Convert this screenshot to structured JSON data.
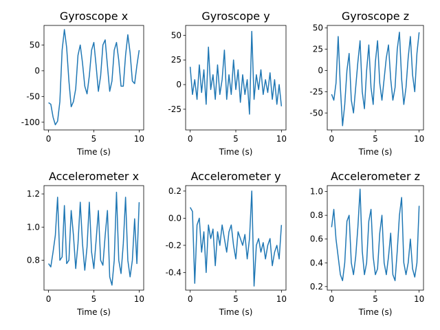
{
  "figure": {
    "line_color": "#1f77b4",
    "background": "#ffffff"
  },
  "chart_data": [
    {
      "type": "line",
      "title": "Gyroscope x",
      "xlabel": "Time (s)",
      "ylabel": "",
      "xlim": [
        -0.5,
        10.5
      ],
      "ylim": [
        -115,
        88
      ],
      "xticks": [
        0,
        5,
        10
      ],
      "yticks": [
        -100,
        -50,
        0,
        50
      ],
      "x": [
        0,
        0.25,
        0.5,
        0.75,
        1.0,
        1.25,
        1.5,
        1.75,
        2.0,
        2.25,
        2.5,
        2.75,
        3.0,
        3.25,
        3.5,
        3.75,
        4.0,
        4.25,
        4.5,
        4.75,
        5.0,
        5.25,
        5.5,
        5.75,
        6.0,
        6.25,
        6.5,
        6.75,
        7.0,
        7.25,
        7.5,
        7.75,
        8.0,
        8.25,
        8.5,
        8.75,
        9.0,
        9.25,
        9.5,
        9.75,
        10.0
      ],
      "y": [
        -62,
        -65,
        -90,
        -105,
        -98,
        -60,
        40,
        80,
        45,
        -20,
        -70,
        -60,
        -35,
        30,
        50,
        15,
        -30,
        -45,
        -10,
        40,
        55,
        10,
        -40,
        -10,
        50,
        60,
        10,
        -40,
        -20,
        40,
        55,
        20,
        -30,
        -30,
        30,
        70,
        35,
        -20,
        -25,
        10,
        40
      ]
    },
    {
      "type": "line",
      "title": "Gyroscope y",
      "xlabel": "Time (s)",
      "ylabel": "",
      "xlim": [
        -0.5,
        10.5
      ],
      "ylim": [
        -46,
        60
      ],
      "xticks": [
        0,
        5,
        10
      ],
      "yticks": [
        -25,
        0,
        25,
        50
      ],
      "x": [
        0,
        0.25,
        0.5,
        0.75,
        1.0,
        1.25,
        1.5,
        1.75,
        2.0,
        2.25,
        2.5,
        2.75,
        3.0,
        3.25,
        3.5,
        3.75,
        4.0,
        4.25,
        4.5,
        4.75,
        5.0,
        5.25,
        5.5,
        5.75,
        6.0,
        6.25,
        6.5,
        6.75,
        7.0,
        7.25,
        7.5,
        7.75,
        8.0,
        8.25,
        8.5,
        8.75,
        9.0,
        9.25,
        9.5,
        9.75,
        10.0
      ],
      "y": [
        18,
        -10,
        5,
        -15,
        20,
        -8,
        15,
        -20,
        38,
        -5,
        10,
        -15,
        20,
        -10,
        5,
        35,
        -15,
        10,
        -10,
        25,
        -5,
        15,
        -18,
        10,
        -10,
        5,
        -30,
        54,
        -15,
        10,
        -5,
        15,
        -10,
        5,
        -8,
        12,
        -15,
        5,
        -20,
        0,
        -22
      ]
    },
    {
      "type": "line",
      "title": "Gyroscope z",
      "xlabel": "Time (s)",
      "ylabel": "",
      "xlim": [
        -0.5,
        10.5
      ],
      "ylim": [
        -70,
        53
      ],
      "xticks": [
        0,
        5,
        10
      ],
      "yticks": [
        -50,
        -25,
        0,
        25,
        50
      ],
      "x": [
        0,
        0.25,
        0.5,
        0.75,
        1.0,
        1.25,
        1.5,
        1.75,
        2.0,
        2.25,
        2.5,
        2.75,
        3.0,
        3.25,
        3.5,
        3.75,
        4.0,
        4.25,
        4.5,
        4.75,
        5.0,
        5.25,
        5.5,
        5.75,
        6.0,
        6.25,
        6.5,
        6.75,
        7.0,
        7.25,
        7.5,
        7.75,
        8.0,
        8.25,
        8.5,
        8.75,
        9.0,
        9.25,
        9.5,
        9.75,
        10.0
      ],
      "y": [
        -28,
        -35,
        -15,
        40,
        -20,
        -65,
        -40,
        0,
        20,
        -35,
        -50,
        -20,
        10,
        35,
        -25,
        -45,
        0,
        30,
        -20,
        -40,
        10,
        35,
        -15,
        -35,
        -10,
        15,
        30,
        -10,
        -35,
        -20,
        25,
        45,
        -10,
        -40,
        -20,
        15,
        40,
        -5,
        -25,
        20,
        45
      ]
    },
    {
      "type": "line",
      "title": "Accelerometer x",
      "xlabel": "Time (s)",
      "ylabel": "",
      "xlim": [
        -0.5,
        10.5
      ],
      "ylim": [
        0.62,
        1.25
      ],
      "xticks": [
        0,
        5,
        10
      ],
      "yticks": [
        0.8,
        1.0,
        1.2
      ],
      "x": [
        0,
        0.25,
        0.5,
        0.75,
        1.0,
        1.25,
        1.5,
        1.75,
        2.0,
        2.25,
        2.5,
        2.75,
        3.0,
        3.25,
        3.5,
        3.75,
        4.0,
        4.25,
        4.5,
        4.75,
        5.0,
        5.25,
        5.5,
        5.75,
        6.0,
        6.25,
        6.5,
        6.75,
        7.0,
        7.25,
        7.5,
        7.75,
        8.0,
        8.25,
        8.5,
        8.75,
        9.0,
        9.25,
        9.5,
        9.75,
        10.0
      ],
      "y": [
        0.78,
        0.76,
        0.85,
        0.95,
        1.18,
        0.8,
        0.82,
        1.13,
        0.78,
        0.8,
        1.1,
        0.95,
        0.75,
        0.9,
        1.15,
        0.9,
        0.74,
        0.88,
        1.15,
        0.85,
        0.75,
        0.92,
        1.1,
        0.8,
        0.77,
        0.95,
        1.1,
        0.7,
        0.65,
        0.8,
        1.21,
        0.8,
        0.72,
        0.9,
        1.18,
        0.8,
        0.7,
        0.8,
        1.05,
        0.78,
        1.15
      ]
    },
    {
      "type": "line",
      "title": "Accelerometer y",
      "xlabel": "Time (s)",
      "ylabel": "",
      "xlim": [
        -0.5,
        10.5
      ],
      "ylim": [
        -0.53,
        0.24
      ],
      "xticks": [
        0,
        5,
        10
      ],
      "yticks": [
        -0.4,
        -0.2,
        0.0,
        0.2
      ],
      "x": [
        0,
        0.25,
        0.5,
        0.75,
        1.0,
        1.25,
        1.5,
        1.75,
        2.0,
        2.25,
        2.5,
        2.75,
        3.0,
        3.25,
        3.5,
        3.75,
        4.0,
        4.25,
        4.5,
        4.75,
        5.0,
        5.25,
        5.5,
        5.75,
        6.0,
        6.25,
        6.5,
        6.75,
        7.0,
        7.25,
        7.5,
        7.75,
        8.0,
        8.25,
        8.5,
        8.75,
        9.0,
        9.25,
        9.5,
        9.75,
        10.0
      ],
      "y": [
        0.08,
        0.05,
        -0.48,
        -0.05,
        0.0,
        -0.25,
        -0.1,
        -0.4,
        -0.05,
        -0.15,
        -0.08,
        -0.35,
        -0.1,
        -0.2,
        -0.05,
        -0.15,
        -0.25,
        -0.1,
        -0.05,
        -0.2,
        -0.3,
        -0.1,
        -0.15,
        -0.2,
        -0.12,
        -0.3,
        -0.15,
        0.2,
        -0.5,
        -0.2,
        -0.15,
        -0.25,
        -0.18,
        -0.3,
        -0.2,
        -0.15,
        -0.35,
        -0.25,
        -0.2,
        -0.3,
        -0.05
      ]
    },
    {
      "type": "line",
      "title": "Accelerometer z",
      "xlabel": "Time (s)",
      "ylabel": "",
      "xlim": [
        -0.5,
        10.5
      ],
      "ylim": [
        0.17,
        1.05
      ],
      "xticks": [
        0,
        5,
        10
      ],
      "yticks": [
        0.2,
        0.4,
        0.6,
        0.8,
        1.0
      ],
      "x": [
        0,
        0.25,
        0.5,
        0.75,
        1.0,
        1.25,
        1.5,
        1.75,
        2.0,
        2.25,
        2.5,
        2.75,
        3.0,
        3.25,
        3.5,
        3.75,
        4.0,
        4.25,
        4.5,
        4.75,
        5.0,
        5.25,
        5.5,
        5.75,
        6.0,
        6.25,
        6.5,
        6.75,
        7.0,
        7.25,
        7.5,
        7.75,
        8.0,
        8.25,
        8.5,
        8.75,
        9.0,
        9.25,
        9.5,
        9.75,
        10.0
      ],
      "y": [
        0.7,
        0.85,
        0.6,
        0.45,
        0.3,
        0.25,
        0.4,
        0.75,
        0.8,
        0.4,
        0.3,
        0.45,
        0.7,
        1.02,
        0.5,
        0.3,
        0.4,
        0.75,
        0.85,
        0.45,
        0.3,
        0.35,
        0.65,
        0.8,
        0.4,
        0.3,
        0.45,
        0.65,
        0.3,
        0.25,
        0.5,
        0.8,
        0.95,
        0.4,
        0.3,
        0.4,
        0.6,
        0.35,
        0.28,
        0.4,
        0.88
      ]
    }
  ]
}
